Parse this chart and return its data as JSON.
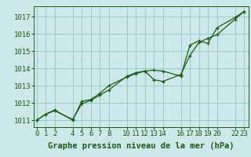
{
  "title": "Graphe pression niveau de la mer (hPa)",
  "bg_color": "#cce8e8",
  "grid_color": "#99cccc",
  "line_color": "#1a5c1a",
  "x_ticks": [
    0,
    1,
    2,
    4,
    5,
    6,
    7,
    8,
    10,
    11,
    12,
    13,
    14,
    16,
    17,
    18,
    19,
    20,
    22,
    23
  ],
  "xlim": [
    -0.3,
    23.5
  ],
  "ylim": [
    1010.6,
    1017.6
  ],
  "yticks": [
    1011,
    1012,
    1013,
    1014,
    1015,
    1016,
    1017
  ],
  "series1_x": [
    0,
    1,
    2,
    4,
    5,
    6,
    7,
    8,
    10,
    11,
    12,
    13,
    14,
    16,
    17,
    18,
    19,
    20,
    22,
    23
  ],
  "series1_y": [
    1011.0,
    1011.35,
    1011.55,
    1011.05,
    1011.95,
    1012.15,
    1012.45,
    1012.75,
    1013.55,
    1013.75,
    1013.85,
    1013.35,
    1013.25,
    1013.65,
    1014.75,
    1015.5,
    1015.75,
    1015.95,
    1016.85,
    1017.3
  ],
  "series2_x": [
    0,
    1,
    2,
    4,
    5,
    6,
    7,
    8,
    10,
    11,
    12,
    13,
    14,
    16,
    17,
    18,
    19,
    20,
    22,
    23
  ],
  "series2_y": [
    1011.0,
    1011.35,
    1011.6,
    1011.0,
    1012.1,
    1012.2,
    1012.55,
    1013.0,
    1013.5,
    1013.7,
    1013.85,
    1013.9,
    1013.85,
    1013.55,
    1015.35,
    1015.6,
    1015.45,
    1016.35,
    1016.95,
    1017.3
  ],
  "tick_fontsize": 6.5,
  "xlabel_fontsize": 7.5
}
